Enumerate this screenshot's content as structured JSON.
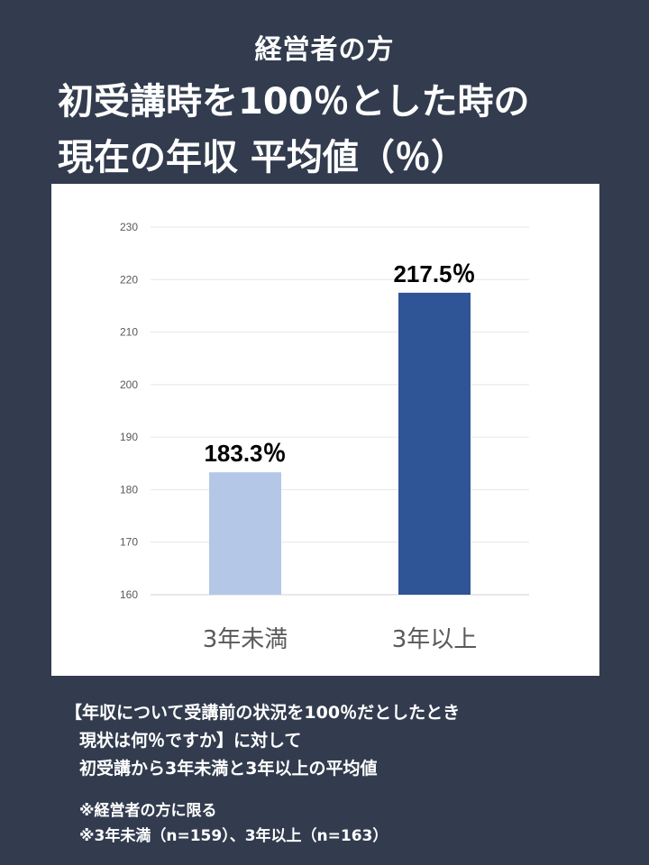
{
  "header": {
    "subtitle": "経営者の方",
    "title_line1": "初受講時を100％とした時の",
    "title_line2": "現在の年収 平均値（％）"
  },
  "chart_data": {
    "type": "bar",
    "categories": [
      "3年未満",
      "3年以上"
    ],
    "values": [
      183.3,
      217.5
    ],
    "value_labels": [
      "183.3％",
      "217.5％"
    ],
    "ylim": [
      160,
      230
    ],
    "yticks": [
      160,
      170,
      180,
      190,
      200,
      210,
      220,
      230
    ],
    "grid": true,
    "colors": [
      "#b4c7e7",
      "#2f5597"
    ],
    "title": "",
    "xlabel": "",
    "ylabel": ""
  },
  "notes": {
    "lines": [
      "【年収について受講前の状況を100％だとしたとき",
      "現状は何％ですか】に対して",
      "初受講から3年未満と3年以上の平均値"
    ],
    "footnotes": [
      "※経営者の方に限る",
      "※3年未満（n=159）、3年以上（n=163）"
    ]
  }
}
